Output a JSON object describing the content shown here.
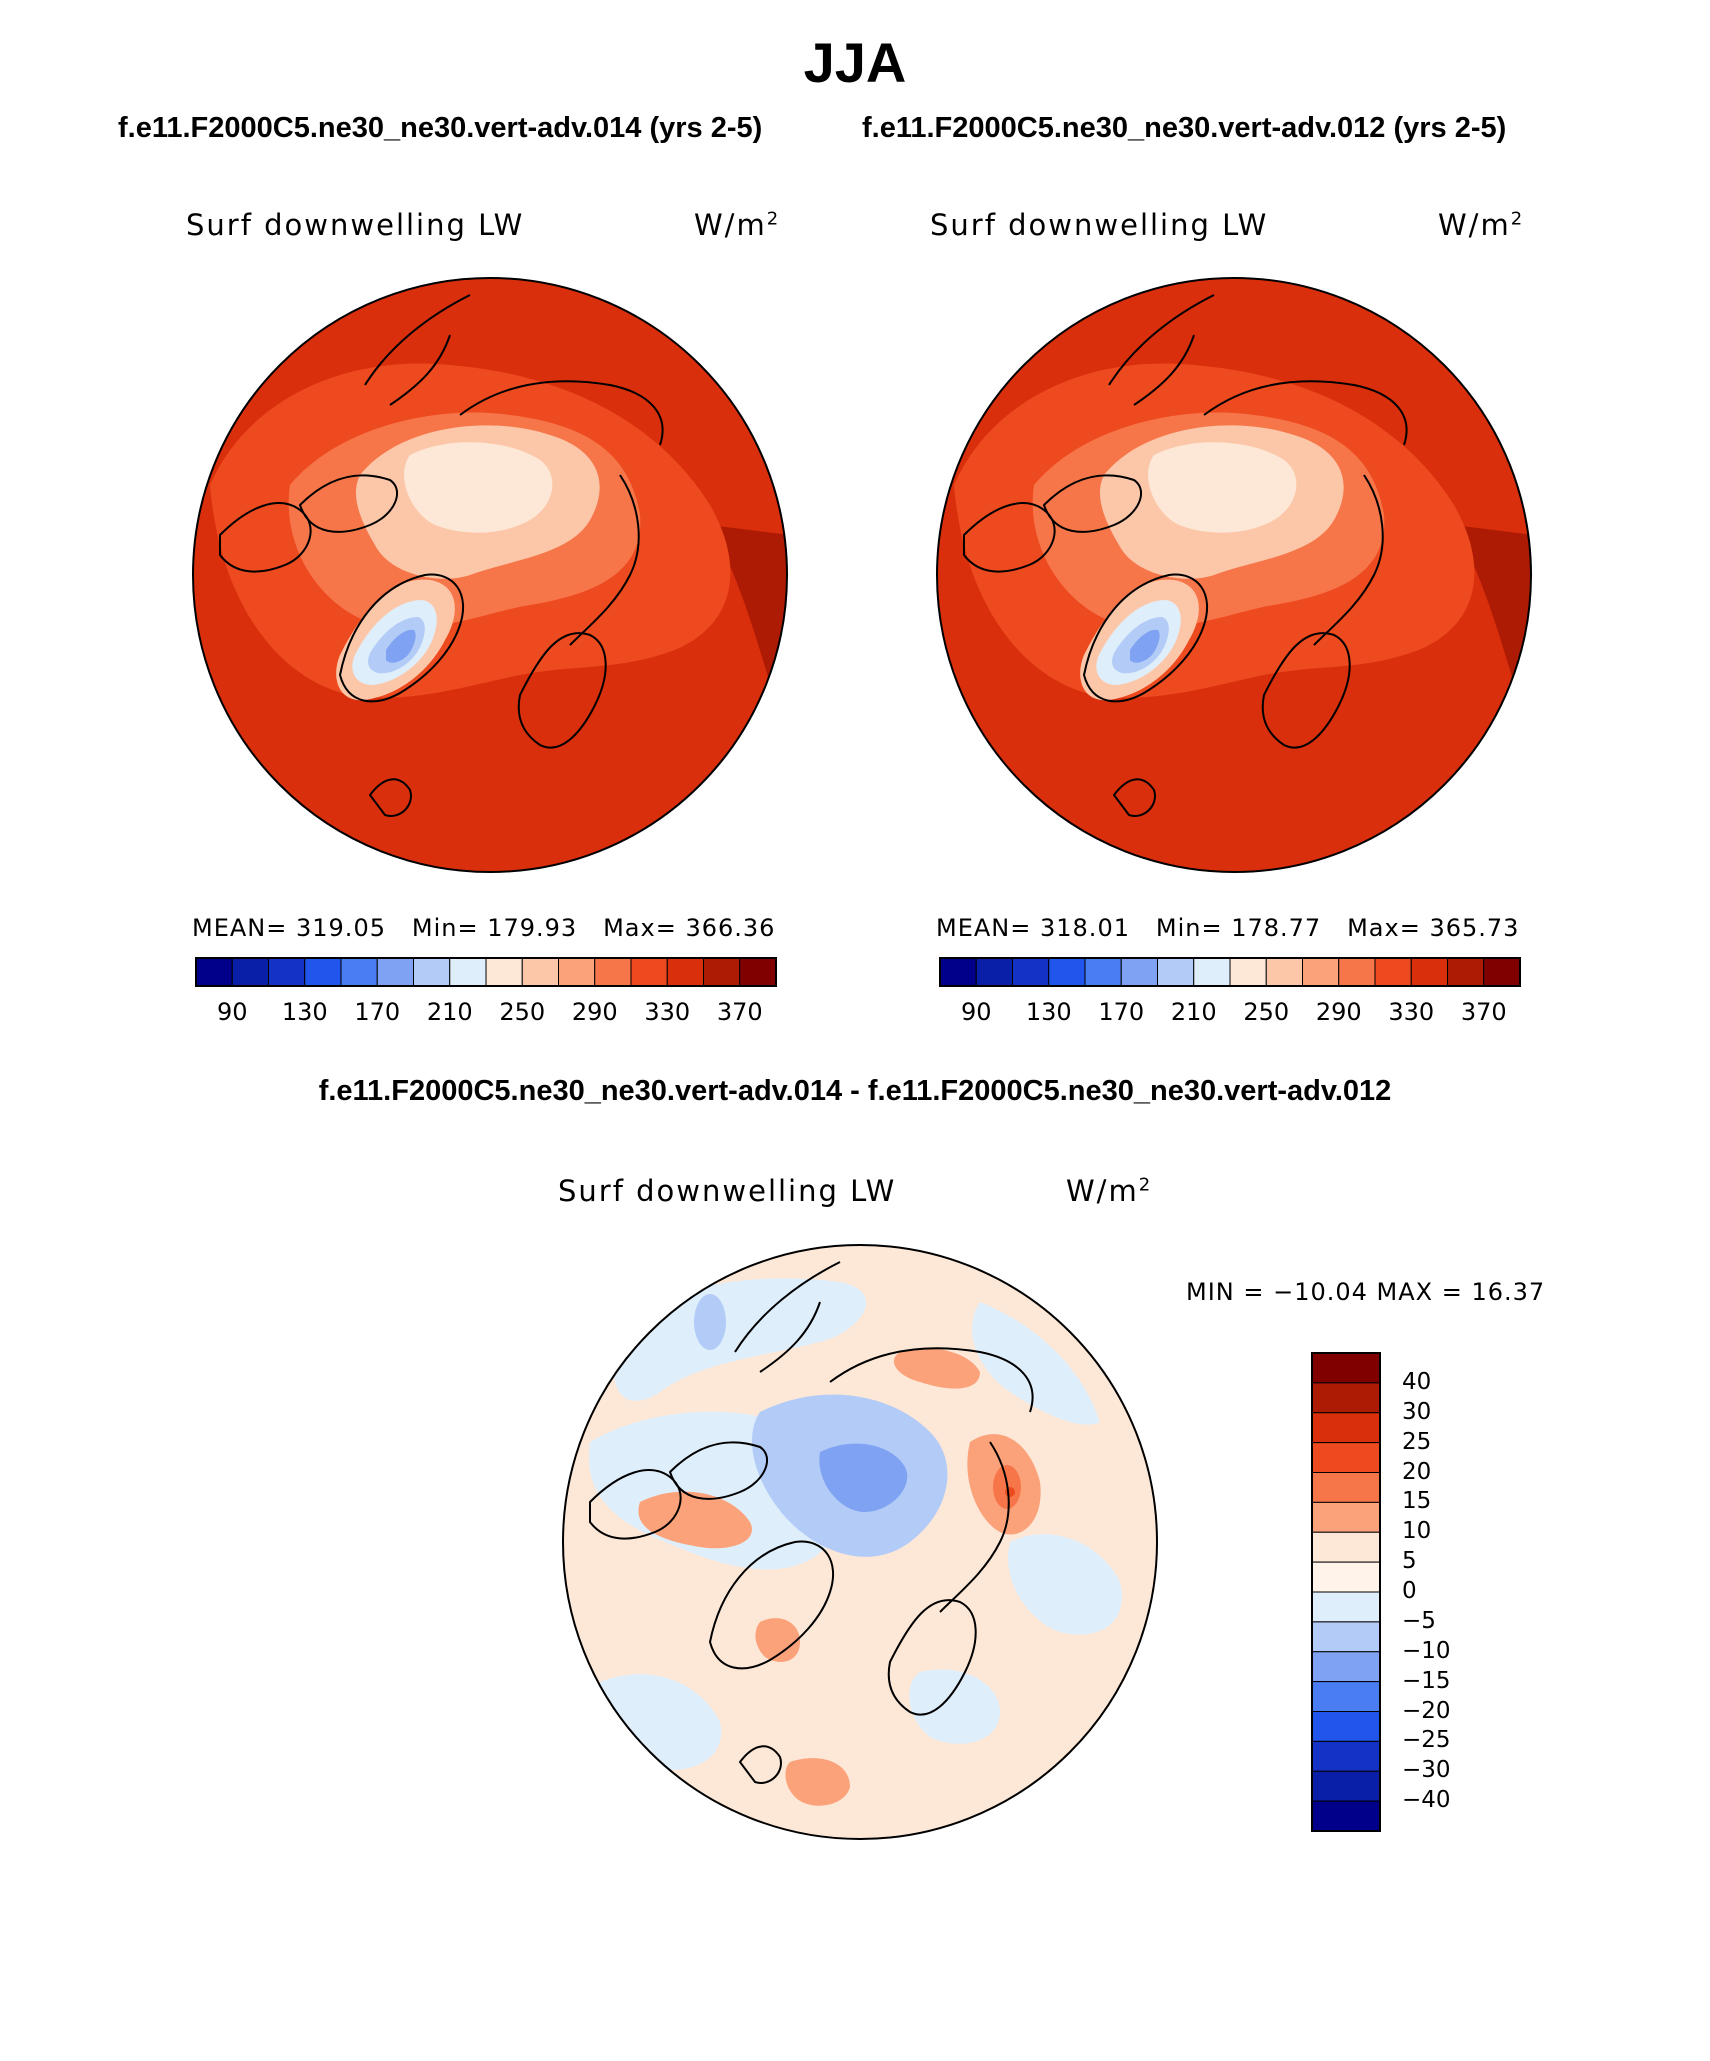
{
  "figure": {
    "title": "JJA",
    "subtitle_left": "f.e11.F2000C5.ne30_ne30.vert-adv.014 (yrs 2-5)",
    "subtitle_right": "f.e11.F2000C5.ne30_ne30.vert-adv.012 (yrs 2-5)",
    "diff_title": "f.e11.F2000C5.ne30_ne30.vert-adv.014 - f.e11.F2000C5.ne30_ne30.vert-adv.012"
  },
  "chart_data": [
    {
      "type": "heatmap",
      "projection": "north-polar-stereographic",
      "variable_label": "Surf downwelling LW",
      "units_base": "W/m",
      "units_exp": "2",
      "stats": {
        "mean_label": "MEAN=",
        "mean": "319.05",
        "min_label": "Min=",
        "min": "179.93",
        "max_label": "Max=",
        "max": "366.36"
      },
      "colorbar": {
        "orientation": "horizontal",
        "levels": [
          90,
          110,
          130,
          150,
          170,
          190,
          210,
          230,
          250,
          270,
          290,
          310,
          330,
          350,
          370
        ],
        "tick_labels": [
          "90",
          "130",
          "170",
          "210",
          "250",
          "290",
          "330",
          "370"
        ],
        "colors": [
          "#00008b",
          "#0a1fa8",
          "#1433c6",
          "#2255ec",
          "#4a7cf2",
          "#7fa3f2",
          "#b3cbf7",
          "#dfeefb",
          "#fde8d8",
          "#fcc7a8",
          "#fba27a",
          "#f6764a",
          "#ee4a1f",
          "#d92f0c",
          "#ae1b05",
          "#800000"
        ]
      }
    },
    {
      "type": "heatmap",
      "projection": "north-polar-stereographic",
      "variable_label": "Surf downwelling LW",
      "units_base": "W/m",
      "units_exp": "2",
      "stats": {
        "mean_label": "MEAN=",
        "mean": "318.01",
        "min_label": "Min=",
        "min": "178.77",
        "max_label": "Max=",
        "max": "365.73"
      },
      "colorbar": {
        "orientation": "horizontal",
        "levels": [
          90,
          110,
          130,
          150,
          170,
          190,
          210,
          230,
          250,
          270,
          290,
          310,
          330,
          350,
          370
        ],
        "tick_labels": [
          "90",
          "130",
          "170",
          "210",
          "250",
          "290",
          "330",
          "370"
        ],
        "colors": [
          "#00008b",
          "#0a1fa8",
          "#1433c6",
          "#2255ec",
          "#4a7cf2",
          "#7fa3f2",
          "#b3cbf7",
          "#dfeefb",
          "#fde8d8",
          "#fcc7a8",
          "#fba27a",
          "#f6764a",
          "#ee4a1f",
          "#d92f0c",
          "#ae1b05",
          "#800000"
        ]
      }
    },
    {
      "type": "heatmap",
      "projection": "north-polar-stereographic",
      "variable_label": "Surf downwelling LW",
      "units_base": "W/m",
      "units_exp": "2",
      "stats_text": "MIN = −10.04 MAX =   16.37",
      "colorbar": {
        "orientation": "vertical",
        "tick_labels": [
          "40",
          "30",
          "25",
          "20",
          "15",
          "10",
          "5",
          "0",
          "−5",
          "−10",
          "−15",
          "−20",
          "−25",
          "−30",
          "−40"
        ],
        "colors": [
          "#800000",
          "#ae1b05",
          "#d92f0c",
          "#ee4a1f",
          "#f6764a",
          "#fba27a",
          "#fde8d8",
          "#fff3ea",
          "#dfeefb",
          "#b3cbf7",
          "#7fa3f2",
          "#4a7cf2",
          "#2255ec",
          "#1433c6",
          "#0a1fa8",
          "#00008b"
        ]
      }
    }
  ]
}
